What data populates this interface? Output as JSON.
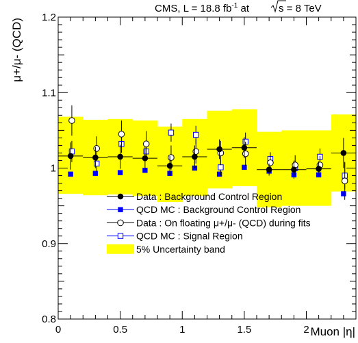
{
  "chart_data": {
    "type": "scatter",
    "title": "CMS, L = 18.8 fb⁻¹ at √s = 8 TeV",
    "title_parts": {
      "left": "CMS, L = 18.8 fb",
      "sup": "-1",
      "mid": " at ",
      "sqrt_arg": "s = 8 TeV"
    },
    "xlabel": "Muon |η|",
    "ylabel": "μ+/μ- (QCD)",
    "xlim": [
      0,
      2.4
    ],
    "ylim": [
      0.8,
      1.2
    ],
    "xticks": [
      {
        "v": 0,
        "label": "0"
      },
      {
        "v": 0.5,
        "label": "0.5"
      },
      {
        "v": 1,
        "label": "1"
      },
      {
        "v": 1.5,
        "label": "1.5"
      },
      {
        "v": 2,
        "label": "2"
      }
    ],
    "yticks": [
      {
        "v": 0.8,
        "label": "0.8"
      },
      {
        "v": 0.9,
        "label": "0.9"
      },
      {
        "v": 1,
        "label": "1"
      },
      {
        "v": 1.1,
        "label": "1.1"
      },
      {
        "v": 1.2,
        "label": "1.2"
      }
    ],
    "grid": false,
    "legend_position": "bottom-center",
    "uncertainty_band": {
      "name": "5% Uncertainty band",
      "color": "#ffff00",
      "bins": [
        {
          "x0": 0.0,
          "x1": 0.2,
          "lo": 0.966,
          "hi": 1.068
        },
        {
          "x0": 0.2,
          "x1": 0.4,
          "lo": 0.964,
          "hi": 1.064
        },
        {
          "x0": 0.4,
          "x1": 0.6,
          "lo": 0.965,
          "hi": 1.065
        },
        {
          "x0": 0.6,
          "x1": 0.8,
          "lo": 0.963,
          "hi": 1.063
        },
        {
          "x0": 0.8,
          "x1": 1.0,
          "lo": 0.955,
          "hi": 1.055
        },
        {
          "x0": 1.0,
          "x1": 1.2,
          "lo": 0.963,
          "hi": 1.065
        },
        {
          "x0": 1.2,
          "x1": 1.4,
          "lo": 0.973,
          "hi": 1.076
        },
        {
          "x0": 1.4,
          "x1": 1.6,
          "lo": 0.976,
          "hi": 1.078
        },
        {
          "x0": 1.6,
          "x1": 1.8,
          "lo": 0.948,
          "hi": 1.048
        },
        {
          "x0": 1.8,
          "x1": 2.0,
          "lo": 0.95,
          "hi": 1.05
        },
        {
          "x0": 2.0,
          "x1": 2.2,
          "lo": 0.95,
          "hi": 1.05
        },
        {
          "x0": 2.2,
          "x1": 2.4,
          "lo": 0.969,
          "hi": 1.071
        }
      ]
    },
    "series": [
      {
        "name": "Data : Background Control Region",
        "marker": "filled-circle",
        "color": "#000000",
        "xerr": true,
        "x": [
          0.1,
          0.3,
          0.5,
          0.7,
          0.9,
          1.1,
          1.3,
          1.5,
          1.7,
          1.9,
          2.1,
          2.3
        ],
        "y": [
          1.016,
          1.014,
          1.015,
          1.013,
          1.003,
          1.015,
          1.025,
          1.027,
          0.998,
          0.998,
          0.999,
          1.02
        ],
        "yerr": [
          0.018,
          0.014,
          0.016,
          0.015,
          0.013,
          0.015,
          0.013,
          0.014,
          0.008,
          0.012,
          0.01,
          0.02
        ]
      },
      {
        "name": "QCD MC : Background Control Region",
        "marker": "filled-square",
        "color": "#0000ff",
        "xerr": false,
        "x": [
          0.1,
          0.3,
          0.5,
          0.7,
          0.9,
          1.1,
          1.3,
          1.5,
          1.7,
          1.9,
          2.1,
          2.3
        ],
        "y": [
          0.992,
          0.993,
          0.994,
          0.997,
          0.993,
          1.0,
          0.992,
          1.001,
          0.996,
          0.991,
          0.991,
          0.966
        ],
        "yerr": [
          0,
          0,
          0,
          0,
          0,
          0,
          0,
          0,
          0,
          0,
          0,
          0
        ]
      },
      {
        "name": "Data : On floating μ+/μ- (QCD) during fits",
        "marker": "open-circle",
        "color": "#000000",
        "xerr": false,
        "x": [
          0.11,
          0.31,
          0.51,
          0.71,
          0.91,
          1.11,
          1.31,
          1.51,
          1.71,
          1.91,
          2.11,
          2.31
        ],
        "y": [
          1.063,
          1.026,
          1.045,
          1.032,
          1.014,
          1.022,
          1.02,
          1.019,
          1.007,
          1.004,
          1.004,
          0.983
        ],
        "yerr": [
          0.02,
          0.016,
          0.018,
          0.017,
          0.016,
          0.016,
          0.016,
          0.016,
          0.01,
          0.013,
          0.012,
          0.025
        ]
      },
      {
        "name": "QCD MC : Signal Region",
        "marker": "open-square",
        "color": "#0000ff",
        "xerr": false,
        "x": [
          0.11,
          0.31,
          0.51,
          0.71,
          0.91,
          1.11,
          1.31,
          1.51,
          1.71,
          1.91,
          2.11,
          2.31
        ],
        "y": [
          1.022,
          1.006,
          1.032,
          1.022,
          1.047,
          1.044,
          1.001,
          1.035,
          1.012,
          1.0,
          1.015,
          0.99
        ],
        "yerr": [
          0.014,
          0.011,
          0.012,
          0.012,
          0.012,
          0.012,
          0.011,
          0.012,
          0.009,
          0.01,
          0.011,
          0.018
        ]
      }
    ]
  }
}
